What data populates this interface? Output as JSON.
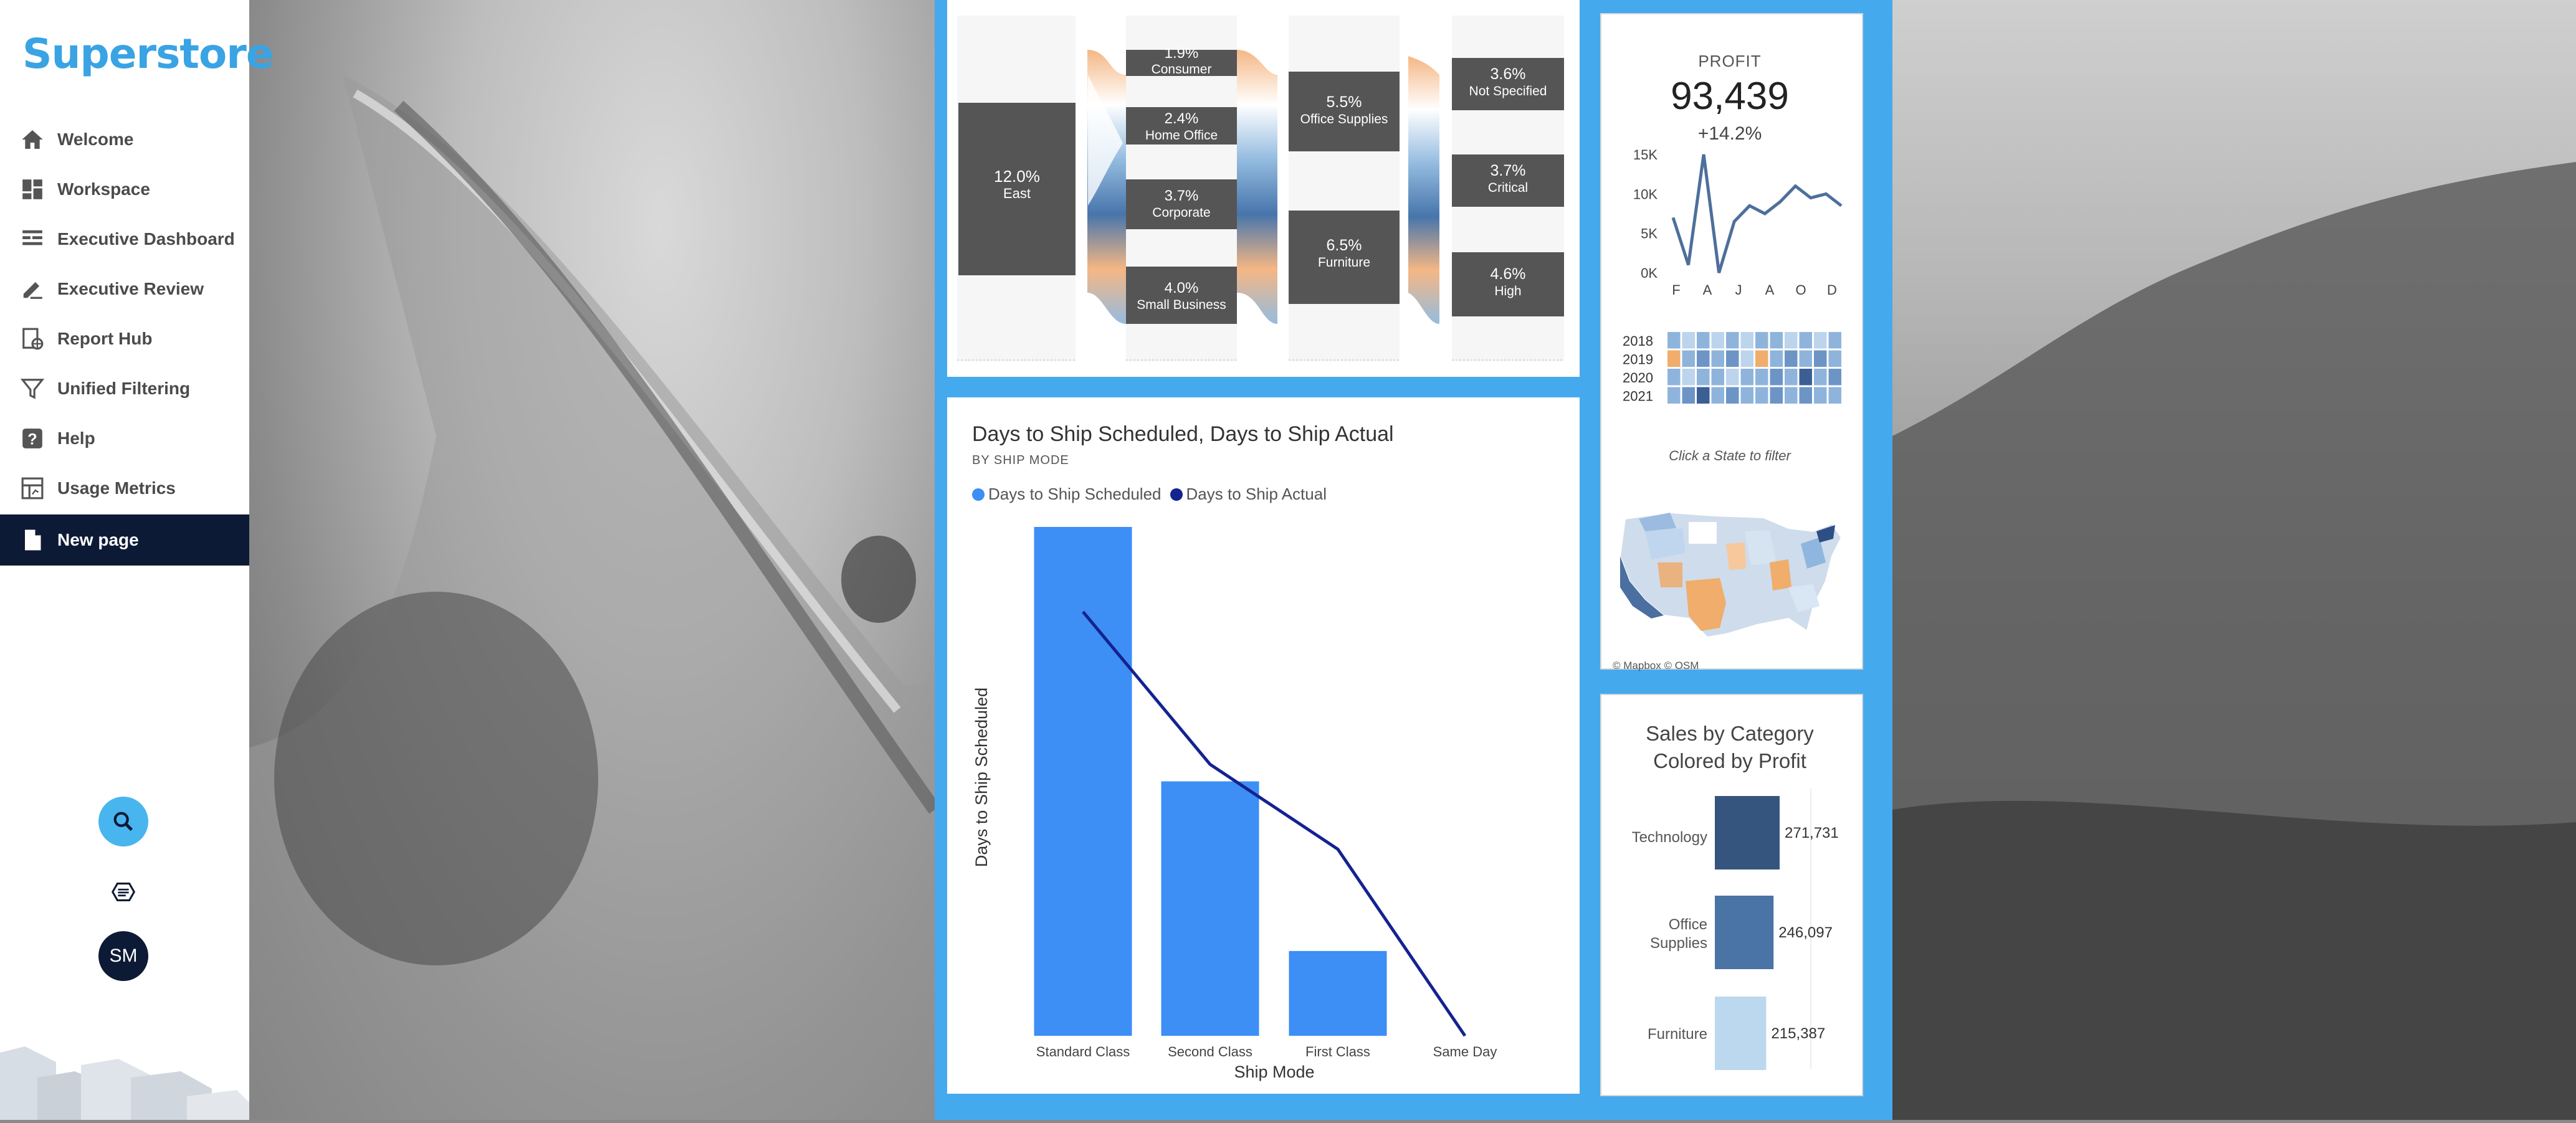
{
  "sidebar": {
    "logo": "Superstore",
    "items": [
      {
        "label": "Welcome",
        "icon": "home-icon"
      },
      {
        "label": "Workspace",
        "icon": "grid-icon"
      },
      {
        "label": "Executive Dashboard",
        "icon": "dashboard-icon"
      },
      {
        "label": "Executive Review",
        "icon": "review-icon"
      },
      {
        "label": "Report Hub",
        "icon": "report-hub-icon"
      },
      {
        "label": "Unified Filtering",
        "icon": "filter-icon"
      },
      {
        "label": "Help",
        "icon": "help-icon"
      },
      {
        "label": "Usage Metrics",
        "icon": "usage-metrics-icon"
      },
      {
        "label": "New page",
        "icon": "page-icon",
        "active": true
      }
    ],
    "user_initials": "SM",
    "colors": {
      "brand": "#3aa3e3",
      "active_bg": "#0d1a36"
    }
  },
  "sankey": {
    "region": {
      "pct": "12.0%",
      "name": "East"
    },
    "segments": [
      {
        "pct": "1.9%",
        "name": "Consumer"
      },
      {
        "pct": "2.4%",
        "name": "Home Office"
      },
      {
        "pct": "3.7%",
        "name": "Corporate"
      },
      {
        "pct": "4.0%",
        "name": "Small Business"
      }
    ],
    "categories": [
      {
        "pct": "5.5%",
        "name": "Office Supplies"
      },
      {
        "pct": "6.5%",
        "name": "Furniture"
      }
    ],
    "priorities": [
      {
        "pct": "3.6%",
        "name": "Not Specified"
      },
      {
        "pct": "3.7%",
        "name": "Critical"
      },
      {
        "pct": "4.6%",
        "name": "High"
      }
    ]
  },
  "ship_chart": {
    "title": "Days to Ship Scheduled, Days to Ship Actual",
    "subtitle": "BY SHIP MODE",
    "legend": [
      "Days to Ship Scheduled",
      "Days to Ship Actual"
    ],
    "colors": {
      "bar": "#3d8ef5",
      "line": "#13238f"
    },
    "xlabel": "Ship Mode",
    "ylabel": "Days to Ship Scheduled"
  },
  "chart_data": [
    {
      "type": "bar",
      "title": "Days to Ship Scheduled, Days to Ship Actual",
      "subtitle": "BY SHIP MODE",
      "categories": [
        "Standard Class",
        "Second Class",
        "First Class",
        "Same Day"
      ],
      "series": [
        {
          "name": "Days to Ship Scheduled",
          "type": "bar",
          "values": [
            6,
            3,
            1,
            0
          ]
        },
        {
          "name": "Days to Ship Actual",
          "type": "line",
          "values": [
            5,
            3.2,
            2.2,
            0
          ]
        }
      ],
      "xlabel": "Ship Mode",
      "ylabel": "Days to Ship Scheduled",
      "ylim": [
        0,
        6
      ],
      "legend": "top-left"
    },
    {
      "type": "line",
      "title": "PROFIT",
      "x": [
        "F",
        "",
        "A",
        "",
        "J",
        "",
        "A",
        "",
        "O",
        "",
        "D",
        ""
      ],
      "series": [
        {
          "name": "",
          "values": [
            7000,
            1000,
            15000,
            0,
            6500,
            8500,
            7500,
            9000,
            11000,
            9500,
            10000,
            8500
          ]
        }
      ],
      "yticks": [
        "15K",
        "10K",
        "5K",
        "0K"
      ],
      "xticks": [
        "F",
        "A",
        "J",
        "A",
        "O",
        "D"
      ],
      "ylim": [
        0,
        15000
      ]
    },
    {
      "type": "bar",
      "title": "Sales by Category Colored by Profit",
      "categories": [
        "Technology",
        "Office Supplies",
        "Furniture"
      ],
      "values": [
        271731,
        246097,
        215387
      ],
      "value_labels": [
        "271,731",
        "246,097",
        "215,387"
      ],
      "colors": [
        "#35557f",
        "#4a73a6",
        "#bcd8ef"
      ],
      "orientation": "horizontal"
    }
  ],
  "kpi": {
    "label": "PROFIT",
    "value": "93,439",
    "change": "+14.2%"
  },
  "heatmap": {
    "years": [
      "2018",
      "2019",
      "2020",
      "2021"
    ],
    "levels": [
      [
        2,
        1,
        2,
        1,
        2,
        1,
        2,
        2,
        1,
        2,
        1,
        2
      ],
      [
        0,
        2,
        3,
        2,
        3,
        1,
        0,
        2,
        3,
        2,
        3,
        2
      ],
      [
        2,
        1,
        2,
        2,
        1,
        2,
        2,
        3,
        2,
        4,
        2,
        3
      ],
      [
        2,
        3,
        4,
        2,
        3,
        2,
        2,
        3,
        2,
        3,
        2,
        2
      ]
    ]
  },
  "map": {
    "note": "Click a State to filter",
    "credits": "© Mapbox  © OSM"
  },
  "sales_category": {
    "title_line1": "Sales by Category",
    "title_line2": "Colored by Profit",
    "labels": [
      "Technology",
      "Office",
      "Supplies",
      "Furniture"
    ],
    "values": [
      "271,731",
      "246,097",
      "215,387"
    ]
  }
}
